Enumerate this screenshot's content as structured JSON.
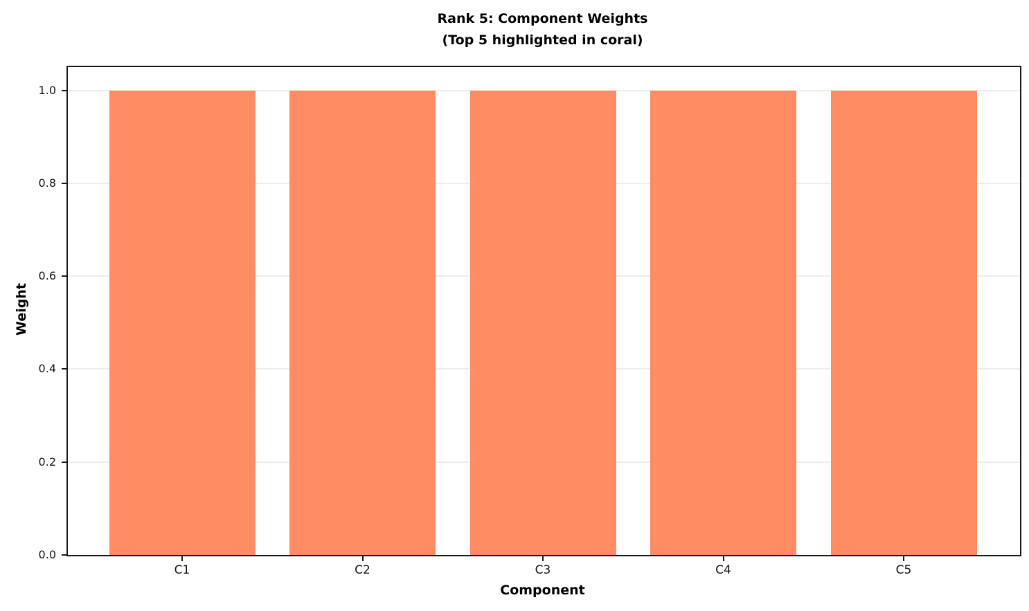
{
  "figure": {
    "title": "Rank 5: Component Weights",
    "subtitle": "(Top 5 highlighted in coral)"
  },
  "chart_data": {
    "type": "bar",
    "title": "Rank 5: Component Weights",
    "subtitle": "(Top 5 highlighted in coral)",
    "xlabel": "Component",
    "ylabel": "Weight",
    "categories": [
      "C1",
      "C2",
      "C3",
      "C4",
      "C5"
    ],
    "values": [
      1.0,
      1.0,
      1.0,
      1.0,
      1.0
    ],
    "ytick_labels": [
      "0.0",
      "0.2",
      "0.4",
      "0.6",
      "0.8",
      "1.0"
    ],
    "yticks": [
      0.0,
      0.2,
      0.4,
      0.6,
      0.8,
      1.0
    ],
    "ylim": [
      0,
      1.05
    ],
    "grid": true,
    "legend_position": "none",
    "bar_color": "#FF8C62",
    "grid_color": "#ededed",
    "spine_color": "#1a1a1a"
  }
}
